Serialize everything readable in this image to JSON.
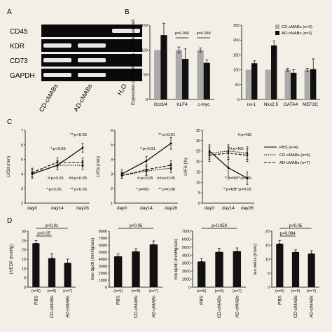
{
  "panel_labels": [
    "A",
    "B",
    "C",
    "D"
  ],
  "gel": {
    "row_labels": [
      "CD45",
      "KDR",
      "CD73",
      "GAPDH"
    ],
    "lane_labels": [
      "CD-cMABs",
      "AD-cMABs",
      "H₂O"
    ],
    "band_presence": [
      [
        0,
        0,
        1
      ],
      [
        1,
        1,
        0
      ],
      [
        1,
        1,
        0
      ],
      [
        1,
        1,
        0
      ]
    ]
  },
  "chart_data": [
    {
      "id": "B1",
      "type": "bar",
      "ylabel": "Expression of mRNA (%) vs. child-derived cell",
      "categories": [
        "Oct3/4",
        "KLF4",
        "c-myc"
      ],
      "ylim": [
        0,
        150
      ],
      "yticks": [
        0,
        50,
        100,
        150
      ],
      "series": [
        {
          "name": "CD-cMABs (n=3)",
          "color": "#a9a9a9",
          "values": [
            100,
            100,
            100
          ],
          "errors": [
            0,
            6,
            4
          ]
        },
        {
          "name": "AD-cMABs (n=3)",
          "color": "#111111",
          "values": [
            130,
            82,
            74
          ],
          "errors": [
            24,
            20,
            6
          ]
        }
      ],
      "annotations": [
        {
          "between": [
            1,
            1
          ],
          "text": "p=0.066"
        },
        {
          "between": [
            2,
            2
          ],
          "text": "p=0.099"
        }
      ]
    },
    {
      "id": "B2",
      "type": "bar",
      "categories": [
        "isl-1",
        "Nkx2.5",
        "GATA4",
        "MEF2C"
      ],
      "ylim": [
        0,
        250
      ],
      "yticks": [
        0,
        50,
        100,
        150,
        200,
        250
      ],
      "legend": "top-right",
      "series": [
        {
          "name": "CD-cMABs (n=3)",
          "color": "#a9a9a9",
          "values": [
            100,
            100,
            100,
            100
          ],
          "errors": [
            0,
            0,
            5,
            5
          ]
        },
        {
          "name": "AD-cMABs (n=3)",
          "color": "#111111",
          "values": [
            122,
            182,
            90,
            102
          ],
          "errors": [
            8,
            15,
            10,
            35
          ]
        }
      ]
    },
    {
      "id": "C1",
      "type": "line",
      "ylabel": "LVDd (mm)",
      "x": [
        "day0",
        "day14",
        "day28"
      ],
      "ylim": [
        2,
        7
      ],
      "yticks": [
        2,
        3,
        4,
        5,
        6,
        7
      ],
      "series": [
        {
          "name": "PBS (n=4)",
          "style": "solid",
          "values": [
            4.0,
            4.6,
            5.8
          ],
          "errors": [
            0.3,
            0.3,
            0.3
          ]
        },
        {
          "name": "CD-cMABs (n=5)",
          "style": "dotted",
          "values": [
            4.0,
            4.6,
            4.6
          ],
          "errors": [
            0.3,
            0.3,
            0.3
          ]
        },
        {
          "name": "AD-cMABs (n=7)",
          "style": "dashed",
          "values": [
            4.1,
            4.8,
            4.8
          ],
          "errors": [
            0.3,
            0.3,
            0.3
          ]
        }
      ],
      "annotations": [
        "**:p<0.05",
        "*:p<0.05",
        "#:p<0.05",
        "##:p<0.05",
        "*:p<0.05",
        "**:p<0.05"
      ]
    },
    {
      "id": "C2",
      "type": "line",
      "ylabel": "LVDs (mm)",
      "x": [
        "day0",
        "day14",
        "day28"
      ],
      "ylim": [
        1,
        6
      ],
      "yticks": [
        1,
        2,
        3,
        4,
        5,
        6
      ],
      "series": [
        {
          "name": "PBS (n=4)",
          "style": "solid",
          "values": [
            3.0,
            3.9,
            5.1
          ],
          "errors": [
            0.3,
            0.3,
            0.4
          ]
        },
        {
          "name": "CD-cMABs (n=5)",
          "style": "dotted",
          "values": [
            2.9,
            3.2,
            3.4
          ],
          "errors": [
            0.2,
            0.3,
            0.3
          ]
        },
        {
          "name": "AD-cMABs (n=7)",
          "style": "dashed",
          "values": [
            2.9,
            3.3,
            3.6
          ],
          "errors": [
            0.2,
            0.3,
            0.3
          ]
        }
      ],
      "annotations": [
        "**:p<0.01",
        "*:p<0.01",
        "#:p<0.05",
        "##:p<0.05",
        "*:p=NS",
        "**:p=0.08"
      ]
    },
    {
      "id": "C3",
      "type": "line",
      "ylabel": "LVFS (%)",
      "x": [
        "day0",
        "day14",
        "day28"
      ],
      "ylim": [
        0,
        35
      ],
      "yticks": [
        0,
        5,
        10,
        15,
        20,
        25,
        30,
        35
      ],
      "legend": "right",
      "series": [
        {
          "name": "PBS (n=4)",
          "style": "solid",
          "values": [
            25,
            17,
            12
          ],
          "errors": [
            3,
            4,
            3
          ]
        },
        {
          "name": "CD-cMABs (n=5)",
          "style": "dotted",
          "values": [
            24,
            25,
            24
          ],
          "errors": [
            3,
            3,
            3
          ]
        },
        {
          "name": "AD-cMABs (n=7)",
          "style": "dashed",
          "values": [
            23,
            24,
            23
          ],
          "errors": [
            3,
            3,
            3
          ]
        }
      ],
      "annotations": [
        "#:p=NS",
        "##:p=NS",
        "*:p=NS",
        "**:p=NS",
        "*:p=NS",
        "**:p=0.05"
      ]
    },
    {
      "id": "D1",
      "type": "bar",
      "ylabel": "LVEDP (mmHg)",
      "categories": [
        "PBS",
        "CD-cMABs",
        "AD-cMABs"
      ],
      "counts": [
        "(n=5)",
        "(n=5)",
        "(n=7)"
      ],
      "ylim": [
        0,
        30
      ],
      "yticks": [
        0,
        5,
        10,
        15,
        20,
        25,
        30
      ],
      "values": [
        23.5,
        15.5,
        13.0
      ],
      "errors": [
        1.5,
        2.5,
        2.0
      ],
      "annotations": [
        {
          "between": [
            0,
            2
          ],
          "text": "p<0.01"
        },
        {
          "between": [
            0,
            1
          ],
          "text": "p<0.05"
        }
      ]
    },
    {
      "id": "D2",
      "type": "bar",
      "ylabel": "max dp/dt (mmHg/sec)",
      "categories": [
        "PBS",
        "CD-cMABs",
        "AD-cMABs"
      ],
      "counts": [
        "(n=5)",
        "(n=5)",
        "(n=7)"
      ],
      "ylim": [
        0,
        8000
      ],
      "yticks": [
        0,
        1000,
        2000,
        3000,
        4000,
        5000,
        6000,
        7000,
        8000
      ],
      "values": [
        4400,
        5100,
        6100
      ],
      "errors": [
        350,
        400,
        500
      ],
      "annotations": [
        {
          "between": [
            0,
            2
          ],
          "text": "p<0.05"
        }
      ]
    },
    {
      "id": "D3",
      "type": "bar",
      "ylabel": "min dp/dt (mmHg/sec)",
      "categories": [
        "PBS",
        "CD-cMABs",
        "AD-cMABs"
      ],
      "counts": [
        "(n=5)",
        "(n=5)",
        "(n=7)"
      ],
      "ylim": [
        0,
        7000
      ],
      "yticks": [
        0,
        1000,
        2000,
        3000,
        4000,
        5000,
        6000,
        7000
      ],
      "values": [
        3200,
        4400,
        4500
      ],
      "errors": [
        350,
        450,
        400
      ],
      "annotations": [
        {
          "between": [
            0,
            2
          ],
          "text": "p=0.059"
        }
      ]
    },
    {
      "id": "D4",
      "type": "bar",
      "ylabel": "tau weiss (msec)",
      "categories": [
        "PBS",
        "CD-cMABs",
        "AD-cMABs"
      ],
      "counts": [
        "(n=5)",
        "(n=5)",
        "(n=7)"
      ],
      "ylim": [
        0,
        20
      ],
      "yticks": [
        0,
        5,
        10,
        15,
        20
      ],
      "values": [
        15.5,
        12.5,
        12.0
      ],
      "errors": [
        1.2,
        0.8,
        1.0
      ],
      "annotations": [
        {
          "between": [
            0,
            2
          ],
          "text": "p<0.05"
        },
        {
          "between": [
            0,
            1
          ],
          "text": "p=0.084"
        }
      ]
    }
  ]
}
